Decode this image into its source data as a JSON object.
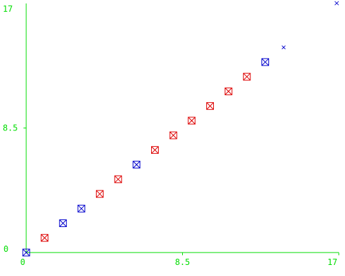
{
  "chart_data": {
    "type": "scatter",
    "title": "",
    "xlabel": "",
    "ylabel": "",
    "xlim": [
      0,
      17
    ],
    "ylim": [
      0,
      17
    ],
    "grid": false,
    "x_ticks": [
      "0",
      "8.5",
      "17"
    ],
    "y_ticks": [
      "0",
      "8.5",
      "17"
    ],
    "axis_color": "#00dd00",
    "series": [
      {
        "color": "#dd0000",
        "marker": "square-x",
        "points": [
          [
            1,
            1
          ],
          [
            4,
            4
          ],
          [
            5,
            5
          ],
          [
            7,
            7
          ],
          [
            8,
            8
          ],
          [
            9,
            9
          ],
          [
            10,
            10
          ],
          [
            11,
            11
          ],
          [
            12,
            12
          ]
        ]
      },
      {
        "color": "#0000cc",
        "marker": "square-x",
        "points": [
          [
            0,
            0
          ],
          [
            2,
            2
          ],
          [
            3,
            3
          ],
          [
            6,
            6
          ],
          [
            13,
            13
          ]
        ]
      },
      {
        "color": "#0000cc",
        "marker": "x",
        "points": [
          [
            14,
            14
          ]
        ]
      }
    ],
    "corner_marker": {
      "color": "#0000cc",
      "glyph": "×"
    }
  }
}
